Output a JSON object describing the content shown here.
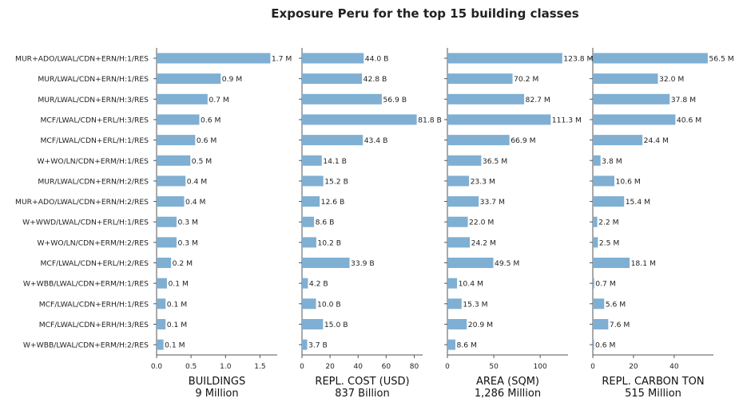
{
  "title": "Exposure Peru for the top 15 building classes",
  "chart_data": {
    "type": "bar",
    "orientation": "horizontal",
    "title": "Exposure Peru for the top 15 building classes",
    "bar_color": "#7fafd3",
    "categories": [
      "MUR+ADO/LWAL/CDN+ERN/H:1/RES",
      "MUR/LWAL/CDN+ERN/H:1/RES",
      "MUR/LWAL/CDN+ERN/H:3/RES",
      "MCF/LWAL/CDN+ERL/H:3/RES",
      "MCF/LWAL/CDN+ERL/H:1/RES",
      "W+WO/LN/CDN+ERM/H:1/RES",
      "MUR/LWAL/CDN+ERN/H:2/RES",
      "MUR+ADO/LWAL/CDN+ERN/H:2/RES",
      "W+WWD/LWAL/CDN+ERL/H:1/RES",
      "W+WO/LN/CDN+ERM/H:2/RES",
      "MCF/LWAL/CDN+ERL/H:2/RES",
      "W+WBB/LWAL/CDN+ERM/H:1/RES",
      "MCF/LWAL/CDN+ERH/H:1/RES",
      "MCF/LWAL/CDN+ERH/H:3/RES",
      "W+WBB/LWAL/CDN+ERM/H:2/RES"
    ],
    "panels": [
      {
        "name": "BUILDINGS",
        "total": "9 Million",
        "xlim": [
          0,
          1.75
        ],
        "ticks": [
          0,
          0.5,
          1,
          1.5
        ],
        "tick_labels": [
          "0.0",
          "0.5",
          "1.0",
          "1.5"
        ],
        "values": [
          1.65,
          0.93,
          0.74,
          0.62,
          0.56,
          0.49,
          0.42,
          0.4,
          0.29,
          0.29,
          0.21,
          0.15,
          0.13,
          0.13,
          0.1
        ],
        "labels": [
          "1.7 M",
          "0.9 M",
          "0.7 M",
          "0.6 M",
          "0.6 M",
          "0.5 M",
          "0.4 M",
          "0.4 M",
          "0.3 M",
          "0.3 M",
          "0.2 M",
          "0.1 M",
          "0.1 M",
          "0.1 M",
          "0.1 M"
        ]
      },
      {
        "name": "REPL. COST (USD)",
        "total": "837 Billion",
        "xlim": [
          0,
          86
        ],
        "ticks": [
          0,
          20,
          40,
          60,
          80
        ],
        "tick_labels": [
          "0",
          "20",
          "40",
          "60",
          "80"
        ],
        "values": [
          44.0,
          42.8,
          56.9,
          81.8,
          43.4,
          14.1,
          15.2,
          12.6,
          8.6,
          10.2,
          33.9,
          4.2,
          10.0,
          15.0,
          3.7
        ],
        "labels": [
          "44.0 B",
          "42.8 B",
          "56.9 B",
          "81.8 B",
          "43.4 B",
          "14.1 B",
          "15.2 B",
          "12.6 B",
          "8.6 B",
          "10.2 B",
          "33.9 B",
          "4.2 B",
          "10.0 B",
          "15.0 B",
          "3.7 B"
        ]
      },
      {
        "name": "AREA (SQM)",
        "total": "1,286 Million",
        "xlim": [
          0,
          130
        ],
        "ticks": [
          0,
          50,
          100
        ],
        "tick_labels": [
          "0",
          "50",
          "100"
        ],
        "values": [
          123.8,
          70.2,
          82.7,
          111.3,
          66.9,
          36.5,
          23.3,
          33.7,
          22.0,
          24.2,
          49.5,
          10.4,
          15.3,
          20.9,
          8.6
        ],
        "labels": [
          "123.8 M",
          "70.2 M",
          "82.7 M",
          "111.3 M",
          "66.9 M",
          "36.5 M",
          "23.3 M",
          "33.7 M",
          "22.0 M",
          "24.2 M",
          "49.5 M",
          "10.4 M",
          "15.3 M",
          "20.9 M",
          "8.6 M"
        ]
      },
      {
        "name": "REPL. CARBON TON",
        "total": "515 Million",
        "xlim": [
          0,
          59.3
        ],
        "ticks": [
          0,
          20,
          40
        ],
        "tick_labels": [
          "0",
          "20",
          "40"
        ],
        "values": [
          56.5,
          32.0,
          37.8,
          40.6,
          24.4,
          3.8,
          10.6,
          15.4,
          2.2,
          2.5,
          18.1,
          0.7,
          5.6,
          7.6,
          0.6
        ],
        "labels": [
          "56.5 M",
          "32.0 M",
          "37.8 M",
          "40.6 M",
          "24.4 M",
          "3.8 M",
          "10.6 M",
          "15.4 M",
          "2.2 M",
          "2.5 M",
          "18.1 M",
          "0.7 M",
          "5.6 M",
          "7.6 M",
          "0.6 M"
        ]
      }
    ]
  }
}
